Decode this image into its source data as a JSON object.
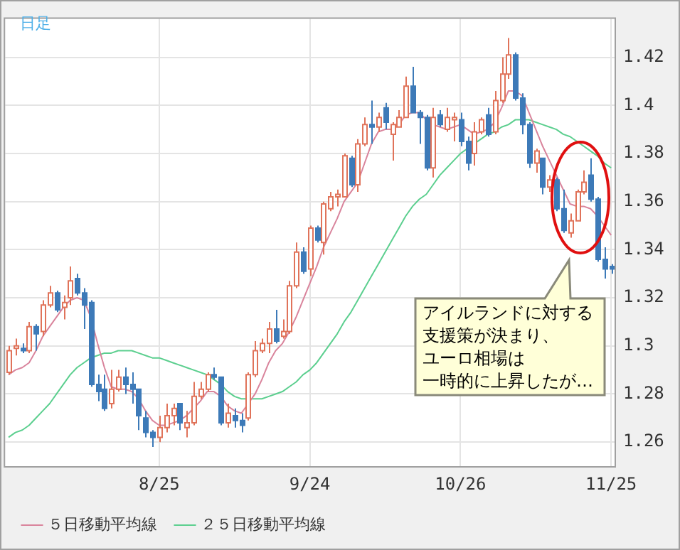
{
  "chart_data": {
    "type": "candlestick",
    "annotations": [
      "日足",
      "アイルランドに対する",
      "支援策が決まり、",
      "ユーロ相場は",
      "一時的に上昇したが…"
    ],
    "categories": [
      null,
      null,
      null,
      null,
      null,
      null,
      null,
      null,
      null,
      null,
      null,
      null,
      null,
      null,
      null,
      null,
      null,
      null,
      null,
      null,
      null,
      null,
      "8/25",
      null,
      null,
      null,
      null,
      null,
      null,
      null,
      null,
      null,
      null,
      null,
      null,
      null,
      null,
      null,
      null,
      null,
      null,
      null,
      null,
      null,
      "9/24",
      null,
      null,
      null,
      null,
      null,
      null,
      null,
      null,
      null,
      null,
      null,
      null,
      null,
      null,
      null,
      null,
      null,
      null,
      null,
      null,
      null,
      "10/26",
      null,
      null,
      null,
      null,
      null,
      null,
      null,
      null,
      null,
      null,
      null,
      null,
      null,
      null,
      null,
      null,
      null,
      null,
      null,
      null,
      null,
      "11/25"
    ],
    "ohlc": [
      [
        1.289,
        1.3,
        1.288,
        1.298
      ],
      [
        1.299,
        1.303,
        1.296,
        1.3
      ],
      [
        1.299,
        1.301,
        1.297,
        1.298
      ],
      [
        1.298,
        1.31,
        1.297,
        1.308
      ],
      [
        1.308,
        1.309,
        1.298,
        1.305
      ],
      [
        1.306,
        1.319,
        1.304,
        1.317
      ],
      [
        1.317,
        1.325,
        1.316,
        1.322
      ],
      [
        1.322,
        1.323,
        1.314,
        1.315
      ],
      [
        1.316,
        1.321,
        1.311,
        1.318
      ],
      [
        1.32,
        1.333,
        1.317,
        1.327
      ],
      [
        1.328,
        1.33,
        1.321,
        1.322
      ],
      [
        1.322,
        1.324,
        1.307,
        1.317
      ],
      [
        1.318,
        1.319,
        1.283,
        1.284
      ],
      [
        1.284,
        1.288,
        1.277,
        1.281
      ],
      [
        1.282,
        1.288,
        1.273,
        1.274
      ],
      [
        1.276,
        1.29,
        1.274,
        1.282
      ],
      [
        1.282,
        1.29,
        1.281,
        1.287
      ],
      [
        1.287,
        1.291,
        1.28,
        1.284
      ],
      [
        1.284,
        1.289,
        1.276,
        1.282
      ],
      [
        1.282,
        1.282,
        1.265,
        1.271
      ],
      [
        1.27,
        1.273,
        1.262,
        1.264
      ],
      [
        1.264,
        1.265,
        1.258,
        1.262
      ],
      [
        1.262,
        1.271,
        1.26,
        1.266
      ],
      [
        1.266,
        1.276,
        1.264,
        1.271
      ],
      [
        1.271,
        1.276,
        1.267,
        1.274
      ],
      [
        1.276,
        1.276,
        1.265,
        1.268
      ],
      [
        1.266,
        1.273,
        1.262,
        1.268
      ],
      [
        1.268,
        1.285,
        1.267,
        1.279
      ],
      [
        1.279,
        1.285,
        1.278,
        1.282
      ],
      [
        1.282,
        1.289,
        1.281,
        1.288
      ],
      [
        1.288,
        1.291,
        1.286,
        1.287
      ],
      [
        1.287,
        1.287,
        1.267,
        1.268
      ],
      [
        1.268,
        1.276,
        1.266,
        1.272
      ],
      [
        1.271,
        1.274,
        1.266,
        1.269
      ],
      [
        1.269,
        1.272,
        1.264,
        1.267
      ],
      [
        1.27,
        1.289,
        1.269,
        1.288
      ],
      [
        1.288,
        1.302,
        1.287,
        1.298
      ],
      [
        1.298,
        1.303,
        1.297,
        1.301
      ],
      [
        1.301,
        1.31,
        1.297,
        1.307
      ],
      [
        1.307,
        1.315,
        1.301,
        1.302
      ],
      [
        1.304,
        1.311,
        1.303,
        1.306
      ],
      [
        1.306,
        1.327,
        1.305,
        1.325
      ],
      [
        1.325,
        1.343,
        1.324,
        1.339
      ],
      [
        1.339,
        1.341,
        1.33,
        1.331
      ],
      [
        1.332,
        1.35,
        1.329,
        1.349
      ],
      [
        1.349,
        1.35,
        1.343,
        1.344
      ],
      [
        1.343,
        1.36,
        1.338,
        1.359
      ],
      [
        1.357,
        1.364,
        1.356,
        1.362
      ],
      [
        1.362,
        1.365,
        1.358,
        1.363
      ],
      [
        1.362,
        1.38,
        1.362,
        1.379
      ],
      [
        1.378,
        1.379,
        1.366,
        1.367
      ],
      [
        1.367,
        1.386,
        1.364,
        1.384
      ],
      [
        1.384,
        1.395,
        1.383,
        1.392
      ],
      [
        1.392,
        1.402,
        1.384,
        1.391
      ],
      [
        1.391,
        1.397,
        1.389,
        1.395
      ],
      [
        1.399,
        1.401,
        1.39,
        1.393
      ],
      [
        1.388,
        1.393,
        1.377,
        1.392
      ],
      [
        1.391,
        1.398,
        1.391,
        1.395
      ],
      [
        1.395,
        1.412,
        1.395,
        1.408
      ],
      [
        1.408,
        1.416,
        1.397,
        1.397
      ],
      [
        1.397,
        1.398,
        1.384,
        1.395
      ],
      [
        1.395,
        1.396,
        1.373,
        1.374
      ],
      [
        1.374,
        1.399,
        1.37,
        1.395
      ],
      [
        1.396,
        1.398,
        1.391,
        1.392
      ],
      [
        1.39,
        1.399,
        1.389,
        1.395
      ],
      [
        1.394,
        1.397,
        1.385,
        1.395
      ],
      [
        1.394,
        1.397,
        1.383,
        1.385
      ],
      [
        1.385,
        1.387,
        1.373,
        1.376
      ],
      [
        1.38,
        1.393,
        1.375,
        1.389
      ],
      [
        1.389,
        1.395,
        1.388,
        1.394
      ],
      [
        1.396,
        1.399,
        1.387,
        1.388
      ],
      [
        1.389,
        1.406,
        1.388,
        1.402
      ],
      [
        1.402,
        1.42,
        1.401,
        1.413
      ],
      [
        1.413,
        1.428,
        1.411,
        1.421
      ],
      [
        1.421,
        1.422,
        1.402,
        1.403
      ],
      [
        1.403,
        1.405,
        1.388,
        1.392
      ],
      [
        1.392,
        1.393,
        1.374,
        1.376
      ],
      [
        1.376,
        1.382,
        1.372,
        1.381
      ],
      [
        1.378,
        1.378,
        1.363,
        1.366
      ],
      [
        1.366,
        1.371,
        1.364,
        1.369
      ],
      [
        1.369,
        1.37,
        1.356,
        1.357
      ],
      [
        1.357,
        1.365,
        1.347,
        1.348
      ],
      [
        1.347,
        1.355,
        1.345,
        1.352
      ],
      [
        1.352,
        1.365,
        1.352,
        1.364
      ],
      [
        1.364,
        1.373,
        1.363,
        1.368
      ],
      [
        1.371,
        1.378,
        1.36,
        1.361
      ],
      [
        1.361,
        1.362,
        1.335,
        1.336
      ],
      [
        1.336,
        1.341,
        1.328,
        1.332
      ],
      [
        1.333,
        1.334,
        1.33,
        1.332
      ]
    ],
    "series": [
      {
        "name": "５日移動平均線",
        "type": "line",
        "color": "#d9849c",
        "values": [
          1.288,
          1.29,
          1.291,
          1.293,
          1.298,
          1.304,
          1.308,
          1.312,
          1.316,
          1.319,
          1.32,
          1.319,
          1.312,
          1.301,
          1.291,
          1.283,
          1.282,
          1.282,
          1.281,
          1.278,
          1.273,
          1.269,
          1.267,
          1.267,
          1.268,
          1.269,
          1.271,
          1.274,
          1.277,
          1.281,
          1.281,
          1.279,
          1.275,
          1.273,
          1.272,
          1.276,
          1.28,
          1.286,
          1.293,
          1.298,
          1.301,
          1.306,
          1.312,
          1.319,
          1.326,
          1.333,
          1.341,
          1.347,
          1.353,
          1.36,
          1.364,
          1.368,
          1.376,
          1.384,
          1.389,
          1.39,
          1.39,
          1.392,
          1.396,
          1.397,
          1.397,
          1.394,
          1.392,
          1.391,
          1.39,
          1.391,
          1.392,
          1.39,
          1.388,
          1.389,
          1.39,
          1.393,
          1.399,
          1.406,
          1.406,
          1.404,
          1.397,
          1.39,
          1.383,
          1.377,
          1.371,
          1.365,
          1.359,
          1.358,
          1.358,
          1.357,
          1.354,
          1.35,
          1.346
        ]
      },
      {
        "name": "２５日移動平均線",
        "type": "line",
        "color": "#5ccf8f",
        "values": [
          1.262,
          1.264,
          1.265,
          1.267,
          1.27,
          1.273,
          1.276,
          1.28,
          1.284,
          1.288,
          1.291,
          1.293,
          1.295,
          1.296,
          1.297,
          1.297,
          1.298,
          1.298,
          1.298,
          1.297,
          1.296,
          1.295,
          1.295,
          1.294,
          1.293,
          1.292,
          1.291,
          1.29,
          1.289,
          1.288,
          1.286,
          1.284,
          1.281,
          1.279,
          1.278,
          1.278,
          1.278,
          1.278,
          1.279,
          1.28,
          1.281,
          1.283,
          1.285,
          1.288,
          1.29,
          1.293,
          1.297,
          1.301,
          1.305,
          1.31,
          1.314,
          1.319,
          1.324,
          1.329,
          1.334,
          1.339,
          1.344,
          1.349,
          1.354,
          1.358,
          1.361,
          1.363,
          1.367,
          1.371,
          1.374,
          1.377,
          1.38,
          1.382,
          1.384,
          1.386,
          1.388,
          1.389,
          1.391,
          1.392,
          1.394,
          1.394,
          1.394,
          1.393,
          1.392,
          1.391,
          1.39,
          1.388,
          1.387,
          1.385,
          1.383,
          1.381,
          1.379,
          1.376,
          1.374
        ]
      }
    ],
    "ylim": [
      1.25,
      1.436
    ],
    "yticks": [
      1.26,
      1.28,
      1.3,
      1.32,
      1.34,
      1.36,
      1.38,
      1.4,
      1.42
    ],
    "grid": true,
    "legend": "bottom",
    "marker": "none"
  }
}
